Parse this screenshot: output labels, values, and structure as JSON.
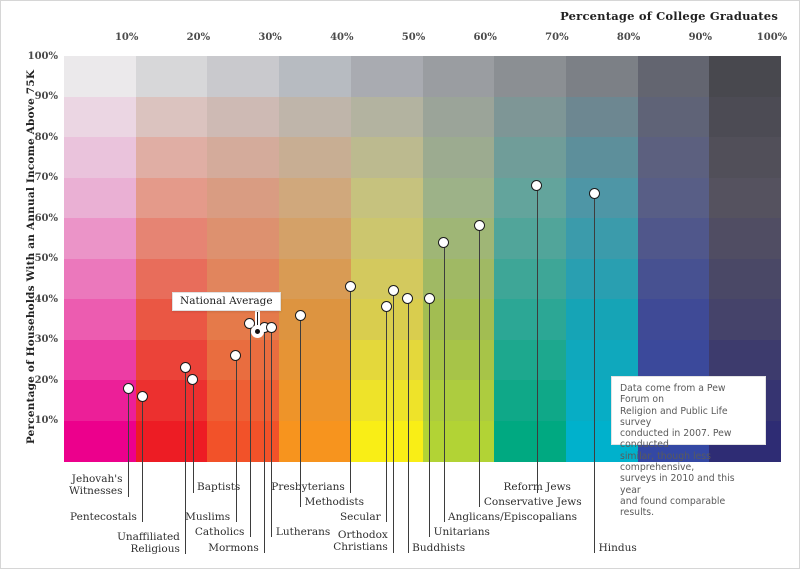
{
  "axes": {
    "x_title": "Percentage of College Graduates",
    "y_title": "Percentage of Households With an Annual Income Above 75K",
    "x_ticks": [
      "10%",
      "20%",
      "30%",
      "40%",
      "50%",
      "60%",
      "70%",
      "80%",
      "90%",
      "100%"
    ],
    "y_ticks": [
      "100%",
      "90%",
      "80%",
      "70%",
      "60%",
      "50%",
      "40%",
      "30%",
      "20%",
      "10%"
    ]
  },
  "note": {
    "text": "Data come from a Pew Forum on\nReligion and Public Life survey\nconducted in 2007. Pew conducted\nsimilar, though less comprehensive,\nsurveys in 2010 and this year\nand found comparable results."
  },
  "national_average": {
    "label": "National Average",
    "college_pct": 27,
    "income_pct": 32
  },
  "chart_data": {
    "type": "scatter",
    "title": "",
    "xlabel": "Percentage of College Graduates",
    "ylabel": "Percentage of Households With an Annual Income Above 75K",
    "xlim": [
      0,
      100
    ],
    "ylim": [
      0,
      100
    ],
    "grid": "10x10 colored background matrix",
    "legend": "none",
    "points": [
      {
        "label": "Jehovah's Witnesses",
        "display": "Jehovah's\nWitnesses",
        "x": 9,
        "y": 18
      },
      {
        "label": "Pentecostals",
        "display": "Pentecostals",
        "x": 11,
        "y": 16
      },
      {
        "label": "Unaffiliated Religious",
        "display": "Unaffiliated\nReligious",
        "x": 17,
        "y": 23
      },
      {
        "label": "Baptists",
        "display": "Baptists",
        "x": 18,
        "y": 20
      },
      {
        "label": "Muslims",
        "display": "Muslims",
        "x": 24,
        "y": 26
      },
      {
        "label": "Catholics",
        "display": "Catholics",
        "x": 26,
        "y": 34
      },
      {
        "label": "Mormons",
        "display": "Mormons",
        "x": 28,
        "y": 33
      },
      {
        "label": "Lutherans",
        "display": "Lutherans",
        "x": 29,
        "y": 33
      },
      {
        "label": "Methodists",
        "display": "Methodists",
        "x": 33,
        "y": 36
      },
      {
        "label": "Presbyterians",
        "display": "Presbyterians",
        "x": 40,
        "y": 43
      },
      {
        "label": "Secular",
        "display": "Secular",
        "x": 45,
        "y": 38
      },
      {
        "label": "Orthodox Christians",
        "display": "Orthodox\nChristians",
        "x": 46,
        "y": 42
      },
      {
        "label": "Buddhists",
        "display": "Buddhists",
        "x": 48,
        "y": 40
      },
      {
        "label": "Unitarians",
        "display": "Unitarians",
        "x": 51,
        "y": 40
      },
      {
        "label": "Anglicans/Episcopalians",
        "display": "Anglicans/Episcopalians",
        "x": 53,
        "y": 54
      },
      {
        "label": "Conservative Jews",
        "display": "Conservative Jews",
        "x": 58,
        "y": 58
      },
      {
        "label": "Reform Jews",
        "display": "Reform Jews",
        "x": 66,
        "y": 68
      },
      {
        "label": "Hindus",
        "display": "Hindus",
        "x": 74,
        "y": 66
      }
    ]
  },
  "palette": {
    "description": "10 columns x 10 rows; per-column color stops at rows 0,3,6,9 (top to bottom)",
    "column_stops": [
      [
        "#ebe9eb",
        "#eab0d4",
        "#ec5cb0",
        "#ec008c"
      ],
      [
        "#d7d7d9",
        "#e49a8a",
        "#ea5744",
        "#ed1c24"
      ],
      [
        "#c9c9cd",
        "#d99c82",
        "#e57a4a",
        "#f25229"
      ],
      [
        "#b7bbc1",
        "#d0a87c",
        "#dd9440",
        "#f7941e"
      ],
      [
        "#a9abb1",
        "#c6c27e",
        "#d9cd4e",
        "#f9ee16"
      ],
      [
        "#9a9da1",
        "#9db288",
        "#a2bd52",
        "#b2d335"
      ],
      [
        "#8b8f93",
        "#63a49c",
        "#2ca795",
        "#00a981"
      ],
      [
        "#7c8086",
        "#4e96a6",
        "#16a4b6",
        "#00b1cc"
      ],
      [
        "#636570",
        "#585e86",
        "#3f4a96",
        "#3448a4"
      ],
      [
        "#48484e",
        "#55525f",
        "#45436a",
        "#2e2c74"
      ]
    ]
  }
}
